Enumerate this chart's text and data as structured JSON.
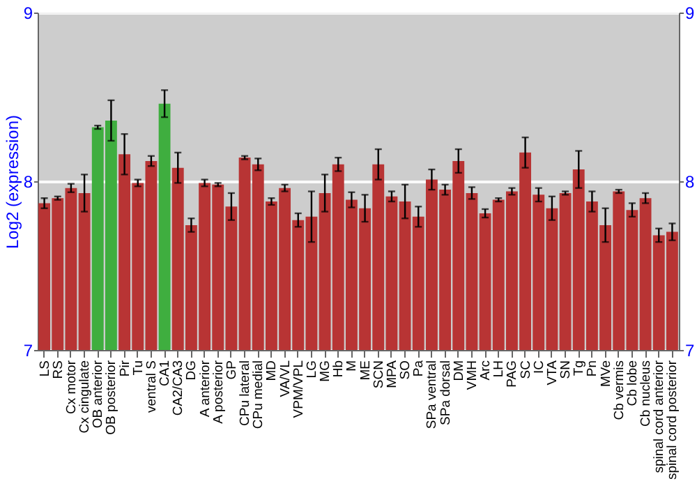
{
  "chart_data": {
    "type": "bar",
    "ylabel": "Log2 (expression)",
    "categories": [
      "LS",
      "RS",
      "Cx motor",
      "Cx cingulate",
      "OB anterior",
      "OB posterior",
      "Pir",
      "Tu",
      "ventral S",
      "CA1",
      "CA2/CA3",
      "DG",
      "A anterior",
      "A posterior",
      "GP",
      "CPu lateral",
      "CPu medial",
      "MD",
      "VA/VL",
      "VPM/VPL",
      "LG",
      "MG",
      "Hb",
      "M",
      "ME",
      "SCN",
      "MPA",
      "SO",
      "Pa",
      "SPa ventral",
      "SPa dorsal",
      "DM",
      "VMH",
      "Arc",
      "LH",
      "PAG",
      "SC",
      "IC",
      "VTA",
      "SN",
      "Tg",
      "Pn",
      "MVe",
      "Cb vermis",
      "Cb lobe",
      "Cb nucleus",
      "spinal cord anterior",
      "spinal cord posterior"
    ],
    "values": [
      7.87,
      7.9,
      7.96,
      7.93,
      8.32,
      8.36,
      8.16,
      7.99,
      8.12,
      8.46,
      8.08,
      7.74,
      7.99,
      7.98,
      7.85,
      8.14,
      8.1,
      7.88,
      7.96,
      7.77,
      7.79,
      7.93,
      8.1,
      7.89,
      7.84,
      8.1,
      7.91,
      7.88,
      7.79,
      8.01,
      7.95,
      8.12,
      7.93,
      7.81,
      7.89,
      7.94,
      8.17,
      7.92,
      7.84,
      7.93,
      8.07,
      7.88,
      7.74,
      7.94,
      7.83,
      7.9,
      7.68,
      7.7
    ],
    "errors": [
      0.03,
      0.01,
      0.025,
      0.11,
      0.01,
      0.12,
      0.12,
      0.02,
      0.03,
      0.08,
      0.09,
      0.04,
      0.02,
      0.01,
      0.08,
      0.01,
      0.035,
      0.02,
      0.02,
      0.04,
      0.15,
      0.11,
      0.04,
      0.045,
      0.08,
      0.09,
      0.03,
      0.1,
      0.06,
      0.06,
      0.03,
      0.07,
      0.035,
      0.025,
      0.01,
      0.02,
      0.09,
      0.04,
      0.07,
      0.01,
      0.11,
      0.06,
      0.1,
      0.01,
      0.04,
      0.03,
      0.04,
      0.05
    ],
    "colors": [
      "#b83434",
      "#b83434",
      "#b83434",
      "#b83434",
      "#3fae3f",
      "#3fae3f",
      "#b83434",
      "#b83434",
      "#b83434",
      "#3fae3f",
      "#b83434",
      "#b83434",
      "#b83434",
      "#b83434",
      "#b83434",
      "#b83434",
      "#b83434",
      "#b83434",
      "#b83434",
      "#b83434",
      "#b83434",
      "#b83434",
      "#b83434",
      "#b83434",
      "#b83434",
      "#b83434",
      "#b83434",
      "#b83434",
      "#b83434",
      "#b83434",
      "#b83434",
      "#b83434",
      "#b83434",
      "#b83434",
      "#b83434",
      "#b83434",
      "#b83434",
      "#b83434",
      "#b83434",
      "#b83434",
      "#b83434",
      "#b83434",
      "#b83434",
      "#b83434",
      "#b83434",
      "#b83434",
      "#b83434",
      "#b83434"
    ],
    "ylim": [
      7,
      9
    ],
    "yticks": [
      7,
      8,
      9
    ],
    "y2lim": [
      7,
      9
    ],
    "y2ticks": [
      7,
      8,
      9
    ],
    "grid": "y"
  }
}
